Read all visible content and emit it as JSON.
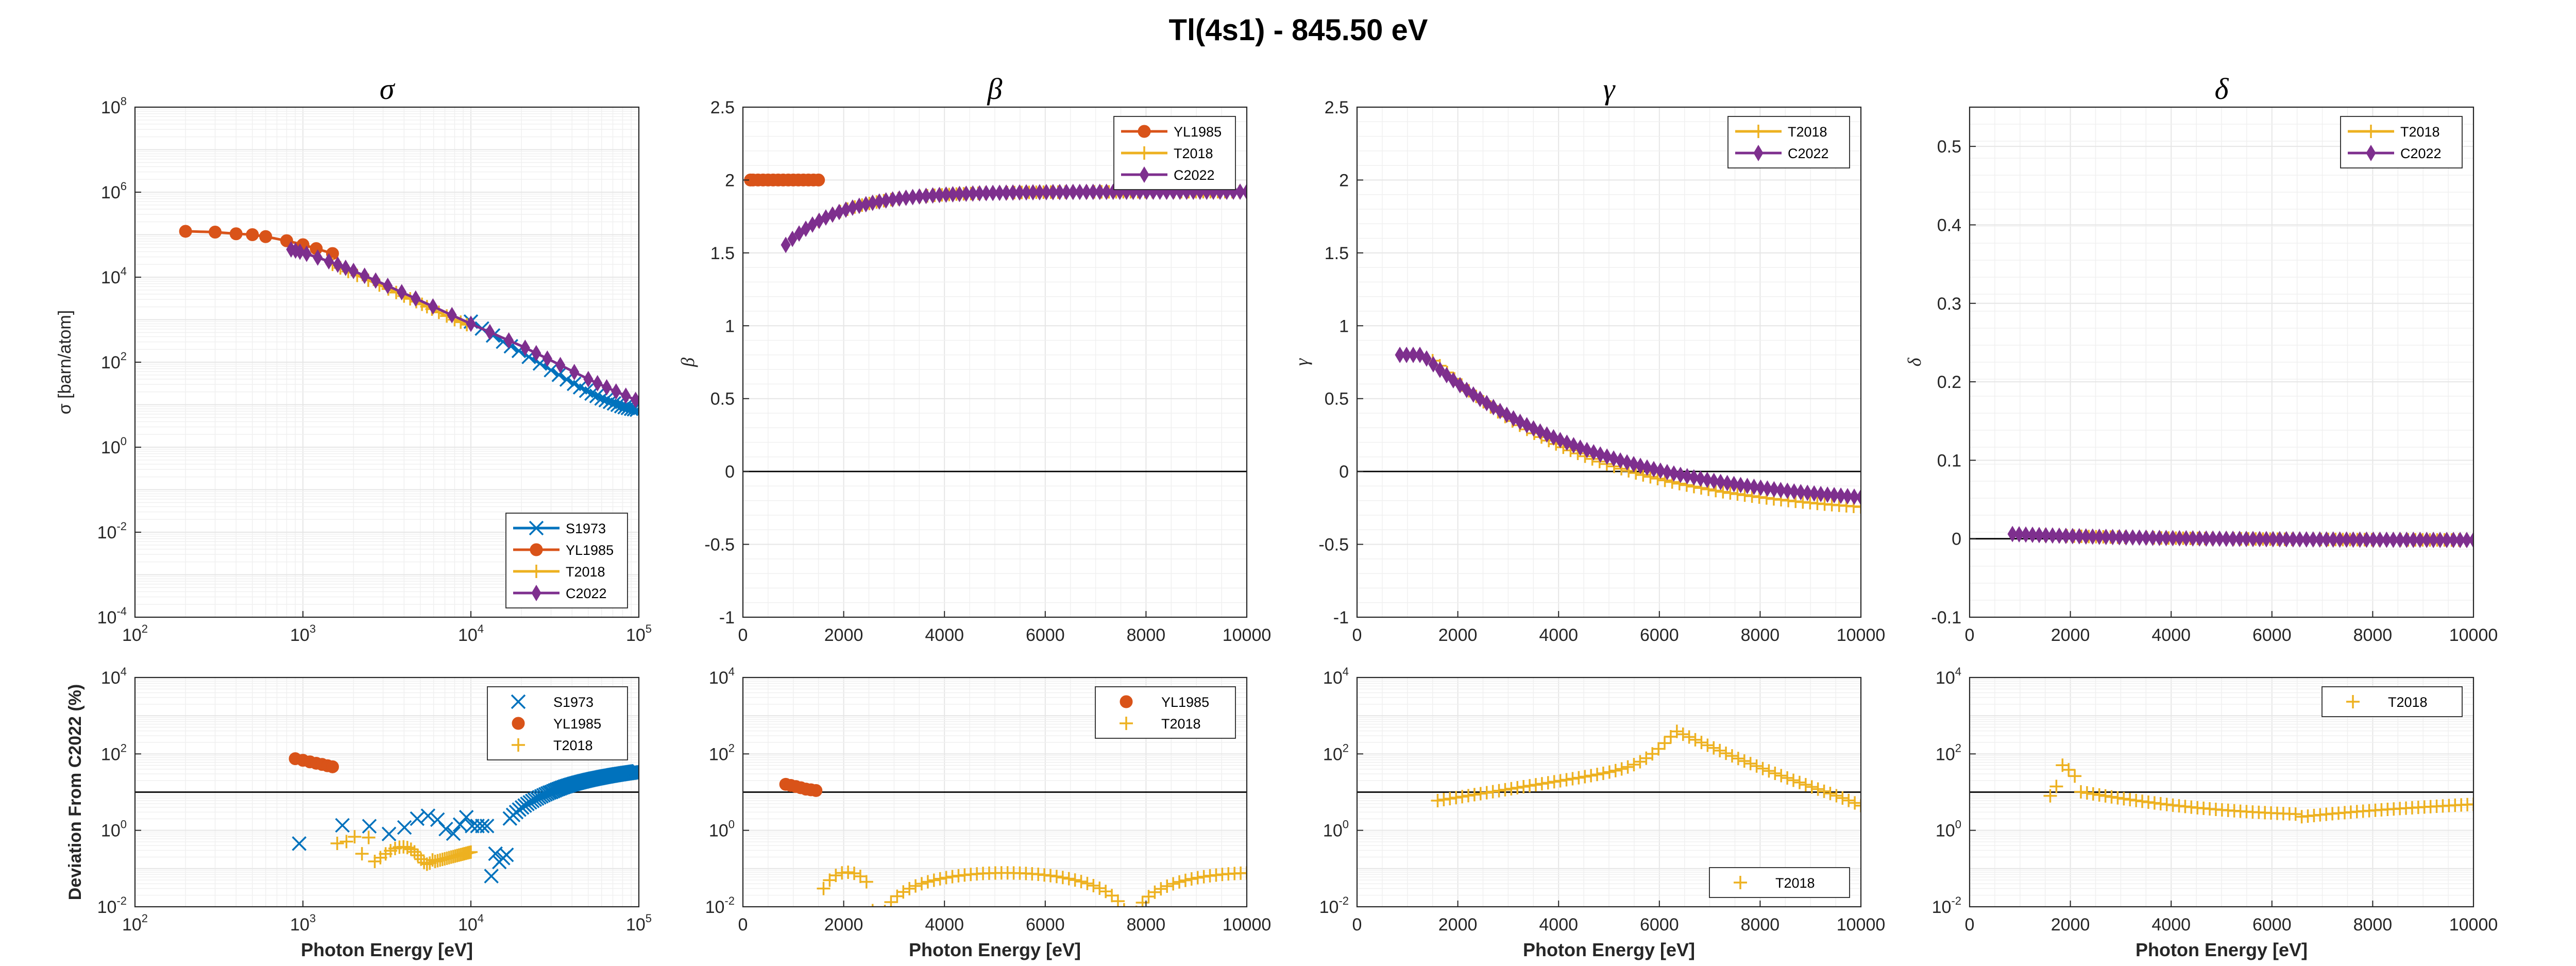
{
  "figure": {
    "title": "Tl(4s1) - 845.50 eV"
  },
  "colors": {
    "S1973": "#0072BD",
    "YL1985": "#D95319",
    "T2018": "#EDB120",
    "C2022": "#7E2F8E"
  },
  "chart_data": [
    {
      "id": "sigma",
      "type": "line",
      "title": "σ",
      "ylabel": "σ [barn/atom]",
      "xlabel": "",
      "xscale": "log",
      "yscale": "log",
      "xlim": [
        100,
        100000
      ],
      "ylim": [
        0.0001,
        100000000
      ],
      "xticks": [
        {
          "v": 100,
          "base": "10",
          "exp": "2"
        },
        {
          "v": 1000,
          "base": "10",
          "exp": "3"
        },
        {
          "v": 10000,
          "base": "10",
          "exp": "4"
        },
        {
          "v": 100000,
          "base": "10",
          "exp": "5"
        }
      ],
      "yticks": [
        {
          "v": 0.0001,
          "base": "10",
          "exp": "-4"
        },
        {
          "v": 0.01,
          "base": "10",
          "exp": "-2"
        },
        {
          "v": 1,
          "base": "10",
          "exp": "0"
        },
        {
          "v": 100,
          "base": "10",
          "exp": "2"
        },
        {
          "v": 10000,
          "base": "10",
          "exp": "4"
        },
        {
          "v": 1000000,
          "base": "10",
          "exp": "6"
        },
        {
          "v": 100000000,
          "base": "10",
          "exp": "8"
        }
      ],
      "legend": {
        "position": "bottom-right",
        "entries": [
          "S1973",
          "YL1985",
          "T2018",
          "C2022"
        ]
      },
      "series": [
        {
          "name": "S1973",
          "marker": "x",
          "line": true,
          "x": [
            10000,
            15000,
            20000,
            30000,
            40000,
            50000,
            60000,
            70000,
            80000,
            90000,
            100000
          ],
          "y": [
            900,
            330,
            170,
            65,
            33,
            20,
            14,
            11,
            9,
            8,
            7.5
          ]
        },
        {
          "name": "YL1985",
          "marker": "o",
          "line": true,
          "x": [
            200,
            300,
            400,
            500,
            600,
            800,
            1000,
            1200,
            1500
          ],
          "y": [
            120000,
            115000,
            105000,
            100000,
            90000,
            72000,
            58000,
            47000,
            36000
          ]
        },
        {
          "name": "T2018",
          "marker": "+",
          "line": true,
          "x": [
            1500,
            2000,
            3000,
            4000,
            5000,
            6000,
            8000,
            10000
          ],
          "y": [
            20000,
            12000,
            6000,
            3600,
            2400,
            1700,
            1000,
            700
          ]
        },
        {
          "name": "C2022",
          "marker": "d",
          "line": true,
          "x": [
            850,
            1000,
            1500,
            2000,
            3000,
            5000,
            10000,
            20000,
            30000,
            50000,
            70000,
            100000
          ],
          "y": [
            45000,
            38000,
            22000,
            14000,
            7000,
            2800,
            800,
            240,
            110,
            40,
            22,
            12
          ]
        }
      ]
    },
    {
      "id": "beta",
      "type": "scatter",
      "title": "β",
      "ylabel": "β",
      "xlabel": "",
      "xscale": "linear",
      "yscale": "linear",
      "xlim": [
        0,
        10000
      ],
      "ylim": [
        -1,
        2.5
      ],
      "xticks": [
        {
          "v": 0,
          "label": "0"
        },
        {
          "v": 2000,
          "label": "2000"
        },
        {
          "v": 4000,
          "label": "4000"
        },
        {
          "v": 6000,
          "label": "6000"
        },
        {
          "v": 8000,
          "label": "8000"
        },
        {
          "v": 10000,
          "label": "10000"
        }
      ],
      "yticks": [
        {
          "v": -1,
          "label": "-1"
        },
        {
          "v": -0.5,
          "label": "-0.5"
        },
        {
          "v": 0,
          "label": "0"
        },
        {
          "v": 0.5,
          "label": "0.5"
        },
        {
          "v": 1,
          "label": "1"
        },
        {
          "v": 1.5,
          "label": "1.5"
        },
        {
          "v": 2,
          "label": "2"
        },
        {
          "v": 2.5,
          "label": "2.5"
        }
      ],
      "zero_line": true,
      "legend": {
        "position": "top-right",
        "entries": [
          "YL1985",
          "T2018",
          "C2022"
        ]
      },
      "series": [
        {
          "name": "YL1985",
          "marker": "o",
          "x": [
            150,
            200,
            300,
            400,
            500,
            600,
            700,
            800,
            900,
            1000,
            1100,
            1200,
            1300,
            1400,
            1500
          ],
          "y": [
            2,
            2,
            2,
            2,
            2,
            2,
            2,
            2,
            2,
            2,
            2,
            2,
            2,
            2,
            2
          ]
        },
        {
          "name": "T2018",
          "marker": "+",
          "curve": "beta",
          "x0": 1500,
          "x1": 10000,
          "n": 60
        },
        {
          "name": "C2022",
          "marker": "d",
          "curve": "beta",
          "x0": 850,
          "x1": 10000,
          "n": 70
        }
      ]
    },
    {
      "id": "gamma",
      "type": "scatter",
      "title": "γ",
      "ylabel": "γ",
      "xlabel": "",
      "xscale": "linear",
      "yscale": "linear",
      "xlim": [
        0,
        10000
      ],
      "ylim": [
        -1,
        2.5
      ],
      "xticks": [
        {
          "v": 0,
          "label": "0"
        },
        {
          "v": 2000,
          "label": "2000"
        },
        {
          "v": 4000,
          "label": "4000"
        },
        {
          "v": 6000,
          "label": "6000"
        },
        {
          "v": 8000,
          "label": "8000"
        },
        {
          "v": 10000,
          "label": "10000"
        }
      ],
      "yticks": [
        {
          "v": -1,
          "label": "-1"
        },
        {
          "v": -0.5,
          "label": "-0.5"
        },
        {
          "v": 0,
          "label": "0"
        },
        {
          "v": 0.5,
          "label": "0.5"
        },
        {
          "v": 1,
          "label": "1"
        },
        {
          "v": 1.5,
          "label": "1.5"
        },
        {
          "v": 2,
          "label": "2"
        },
        {
          "v": 2.5,
          "label": "2.5"
        }
      ],
      "zero_line": true,
      "legend": {
        "position": "top-right",
        "entries": [
          "T2018",
          "C2022"
        ]
      },
      "series": [
        {
          "name": "T2018",
          "marker": "+",
          "curve": "gammaT",
          "x0": 1500,
          "x1": 10000,
          "n": 60
        },
        {
          "name": "C2022",
          "marker": "d",
          "curve": "gammaC",
          "x0": 850,
          "x1": 10000,
          "n": 70
        }
      ]
    },
    {
      "id": "delta",
      "type": "scatter",
      "title": "δ",
      "ylabel": "δ",
      "xlabel": "",
      "xscale": "linear",
      "yscale": "linear",
      "xlim": [
        0,
        10000
      ],
      "ylim": [
        -0.1,
        0.55
      ],
      "xticks": [
        {
          "v": 0,
          "label": "0"
        },
        {
          "v": 2000,
          "label": "2000"
        },
        {
          "v": 4000,
          "label": "4000"
        },
        {
          "v": 6000,
          "label": "6000"
        },
        {
          "v": 8000,
          "label": "8000"
        },
        {
          "v": 10000,
          "label": "10000"
        }
      ],
      "yticks": [
        {
          "v": -0.1,
          "label": "-0.1"
        },
        {
          "v": 0,
          "label": "0"
        },
        {
          "v": 0.1,
          "label": "0.1"
        },
        {
          "v": 0.2,
          "label": "0.2"
        },
        {
          "v": 0.3,
          "label": "0.3"
        },
        {
          "v": 0.4,
          "label": "0.4"
        },
        {
          "v": 0.5,
          "label": "0.5"
        }
      ],
      "zero_line": true,
      "legend": {
        "position": "top-right",
        "entries": [
          "T2018",
          "C2022"
        ]
      },
      "series": [
        {
          "name": "T2018",
          "marker": "+",
          "curve": "delta",
          "x0": 1500,
          "x1": 10000,
          "n": 60
        },
        {
          "name": "C2022",
          "marker": "d",
          "curve": "delta",
          "x0": 850,
          "x1": 10000,
          "n": 70
        }
      ]
    },
    {
      "id": "dev-sigma",
      "type": "scatter",
      "title": "",
      "ylabel": "Deviation From C2022 (%)",
      "xlabel": "Photon Energy [eV]",
      "xscale": "log",
      "yscale": "log",
      "xlim": [
        100,
        100000
      ],
      "ylim": [
        0.01,
        10000
      ],
      "xticks": [
        {
          "v": 100,
          "base": "10",
          "exp": "2"
        },
        {
          "v": 1000,
          "base": "10",
          "exp": "3"
        },
        {
          "v": 10000,
          "base": "10",
          "exp": "4"
        },
        {
          "v": 100000,
          "base": "10",
          "exp": "5"
        }
      ],
      "yticks": [
        {
          "v": 0.01,
          "base": "10",
          "exp": "-2"
        },
        {
          "v": 1,
          "base": "10",
          "exp": "0"
        },
        {
          "v": 100,
          "base": "10",
          "exp": "2"
        },
        {
          "v": 10000,
          "base": "10",
          "exp": "4"
        }
      ],
      "ref_line": 10,
      "legend": {
        "position": "top-right",
        "entries": [
          "S1973",
          "YL1985",
          "T2018"
        ]
      },
      "series": [
        {
          "name": "S1973",
          "marker": "x",
          "curve": "devS",
          "x0": 950,
          "x1": 100000,
          "n": 130
        },
        {
          "name": "YL1985",
          "marker": "o",
          "x": [
            900,
            1000,
            1100,
            1200,
            1300,
            1400,
            1500
          ],
          "y": [
            75,
            68,
            62,
            57,
            53,
            49,
            46
          ]
        },
        {
          "name": "T2018",
          "marker": "+",
          "curve": "devT",
          "x0": 1600,
          "x1": 10000,
          "n": 40
        }
      ]
    },
    {
      "id": "dev-beta",
      "type": "scatter",
      "title": "",
      "ylabel": "",
      "xlabel": "Photon Energy [eV]",
      "xscale": "linear",
      "yscale": "log",
      "xlim": [
        0,
        10000
      ],
      "ylim": [
        0.01,
        10000
      ],
      "xticks": [
        {
          "v": 0,
          "label": "0"
        },
        {
          "v": 2000,
          "label": "2000"
        },
        {
          "v": 4000,
          "label": "4000"
        },
        {
          "v": 6000,
          "label": "6000"
        },
        {
          "v": 8000,
          "label": "8000"
        },
        {
          "v": 10000,
          "label": "10000"
        }
      ],
      "yticks": [
        {
          "v": 0.01,
          "base": "10",
          "exp": "-2"
        },
        {
          "v": 1,
          "base": "10",
          "exp": "0"
        },
        {
          "v": 100,
          "base": "10",
          "exp": "2"
        },
        {
          "v": 10000,
          "base": "10",
          "exp": "4"
        }
      ],
      "ref_line": 10,
      "legend": {
        "position": "top-right",
        "entries": [
          "YL1985",
          "T2018"
        ]
      },
      "series": [
        {
          "name": "YL1985",
          "marker": "o",
          "x": [
            850,
            950,
            1050,
            1150,
            1250,
            1350,
            1450
          ],
          "y": [
            16,
            15,
            14,
            13,
            12,
            11.5,
            11
          ]
        },
        {
          "name": "T2018",
          "marker": "+",
          "curve": "devBeta",
          "x0": 1600,
          "x1": 10000,
          "n": 70
        }
      ]
    },
    {
      "id": "dev-gamma",
      "type": "scatter",
      "title": "",
      "ylabel": "",
      "xlabel": "Photon Energy [eV]",
      "xscale": "linear",
      "yscale": "log",
      "xlim": [
        0,
        10000
      ],
      "ylim": [
        0.01,
        10000
      ],
      "xticks": [
        {
          "v": 0,
          "label": "0"
        },
        {
          "v": 2000,
          "label": "2000"
        },
        {
          "v": 4000,
          "label": "4000"
        },
        {
          "v": 6000,
          "label": "6000"
        },
        {
          "v": 8000,
          "label": "8000"
        },
        {
          "v": 10000,
          "label": "10000"
        }
      ],
      "yticks": [
        {
          "v": 0.01,
          "base": "10",
          "exp": "-2"
        },
        {
          "v": 1,
          "base": "10",
          "exp": "0"
        },
        {
          "v": 100,
          "base": "10",
          "exp": "2"
        },
        {
          "v": 10000,
          "base": "10",
          "exp": "4"
        }
      ],
      "ref_line": 10,
      "legend": {
        "position": "bottom-right",
        "entries": [
          "T2018"
        ]
      },
      "series": [
        {
          "name": "T2018",
          "marker": "+",
          "curve": "devGamma",
          "x0": 1600,
          "x1": 10000,
          "n": 70
        }
      ]
    },
    {
      "id": "dev-delta",
      "type": "scatter",
      "title": "",
      "ylabel": "",
      "xlabel": "Photon Energy [eV]",
      "xscale": "linear",
      "yscale": "log",
      "xlim": [
        0,
        10000
      ],
      "ylim": [
        0.01,
        10000
      ],
      "xticks": [
        {
          "v": 0,
          "label": "0"
        },
        {
          "v": 2000,
          "label": "2000"
        },
        {
          "v": 4000,
          "label": "4000"
        },
        {
          "v": 6000,
          "label": "6000"
        },
        {
          "v": 8000,
          "label": "8000"
        },
        {
          "v": 10000,
          "label": "10000"
        }
      ],
      "yticks": [
        {
          "v": 0.01,
          "base": "10",
          "exp": "-2"
        },
        {
          "v": 1,
          "base": "10",
          "exp": "0"
        },
        {
          "v": 100,
          "base": "10",
          "exp": "2"
        },
        {
          "v": 10000,
          "base": "10",
          "exp": "4"
        }
      ],
      "ref_line": 10,
      "legend": {
        "position": "top-right",
        "entries": [
          "T2018"
        ]
      },
      "series": [
        {
          "name": "T2018",
          "marker": "+",
          "curve": "devDelta",
          "x0": 1600,
          "x1": 10000,
          "n": 70
        }
      ]
    }
  ]
}
